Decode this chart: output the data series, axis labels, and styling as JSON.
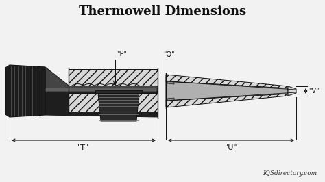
{
  "title": "Thermowell Dimensions",
  "title_fontsize": 13,
  "background_color": "#f2f2f2",
  "label_P": "\"P\"",
  "label_Q": "\"Q\"",
  "label_T": "\"T\"",
  "label_U": "\"U\"",
  "label_V": "\"V\"",
  "watermark": "IQSdirectory.com",
  "line_color": "#111111",
  "body_dark": "#1a1a1a",
  "body_mid": "#3a3a3a",
  "body_grad1": "#555555",
  "body_grad2": "#888888",
  "hatch_fc": "#d8d8d8",
  "stem_fc": "#e0e0e0"
}
